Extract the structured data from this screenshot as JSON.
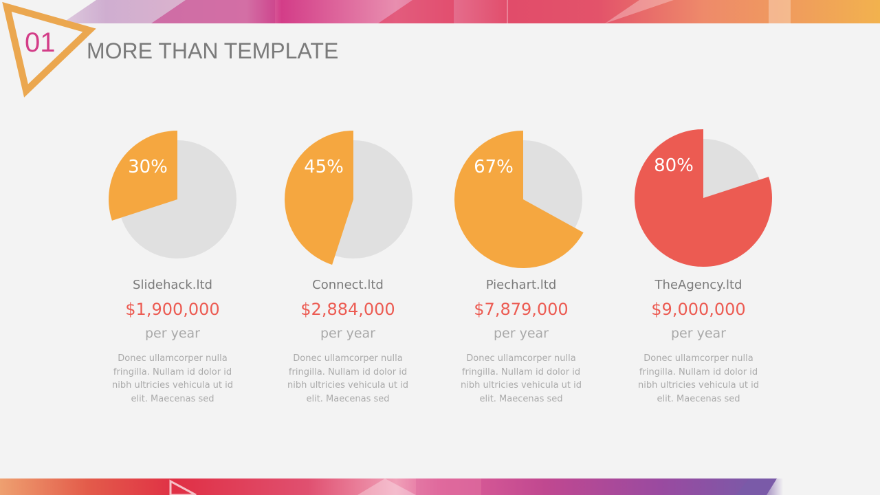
{
  "header": {
    "number": "01",
    "title": "MORE THAN TEMPLATE"
  },
  "colors": {
    "orange": "#f5a740",
    "red": "#ec5b52",
    "gray": "#e0e0e0",
    "accent_number": "#d33d88",
    "triangle": "#eba74f"
  },
  "chart_data": {
    "type": "pie",
    "charts": [
      {
        "name": "Slidehack.ltd",
        "value": 30,
        "label": "30%",
        "color": "#f5a740"
      },
      {
        "name": "Connect.ltd",
        "value": 45,
        "label": "45%",
        "color": "#f5a740"
      },
      {
        "name": "Piechart.ltd",
        "value": 67,
        "label": "67%",
        "color": "#f5a740"
      },
      {
        "name": "TheAgency.ltd",
        "value": 80,
        "label": "80%",
        "color": "#ec5b52"
      }
    ]
  },
  "cards": [
    {
      "name": "Slidehack.ltd",
      "amount": "$1,900,000",
      "period": "per year",
      "desc": "Donec ullamcorper nulla fringilla. Nullam id dolor id nibh ultricies vehicula ut id elit. Maecenas sed"
    },
    {
      "name": "Connect.ltd",
      "amount": "$2,884,000",
      "period": "per year",
      "desc": "Donec ullamcorper nulla fringilla. Nullam id dolor id nibh ultricies vehicula ut id elit. Maecenas sed"
    },
    {
      "name": "Piechart.ltd",
      "amount": "$7,879,000",
      "period": "per year",
      "desc": "Donec ullamcorper nulla fringilla. Nullam id dolor id nibh ultricies vehicula ut id elit. Maecenas sed"
    },
    {
      "name": "TheAgency.ltd",
      "amount": "$9,000,000",
      "period": "per year",
      "desc": "Donec ullamcorper nulla fringilla. Nullam id dolor id nibh ultricies vehicula ut id elit. Maecenas sed"
    }
  ]
}
